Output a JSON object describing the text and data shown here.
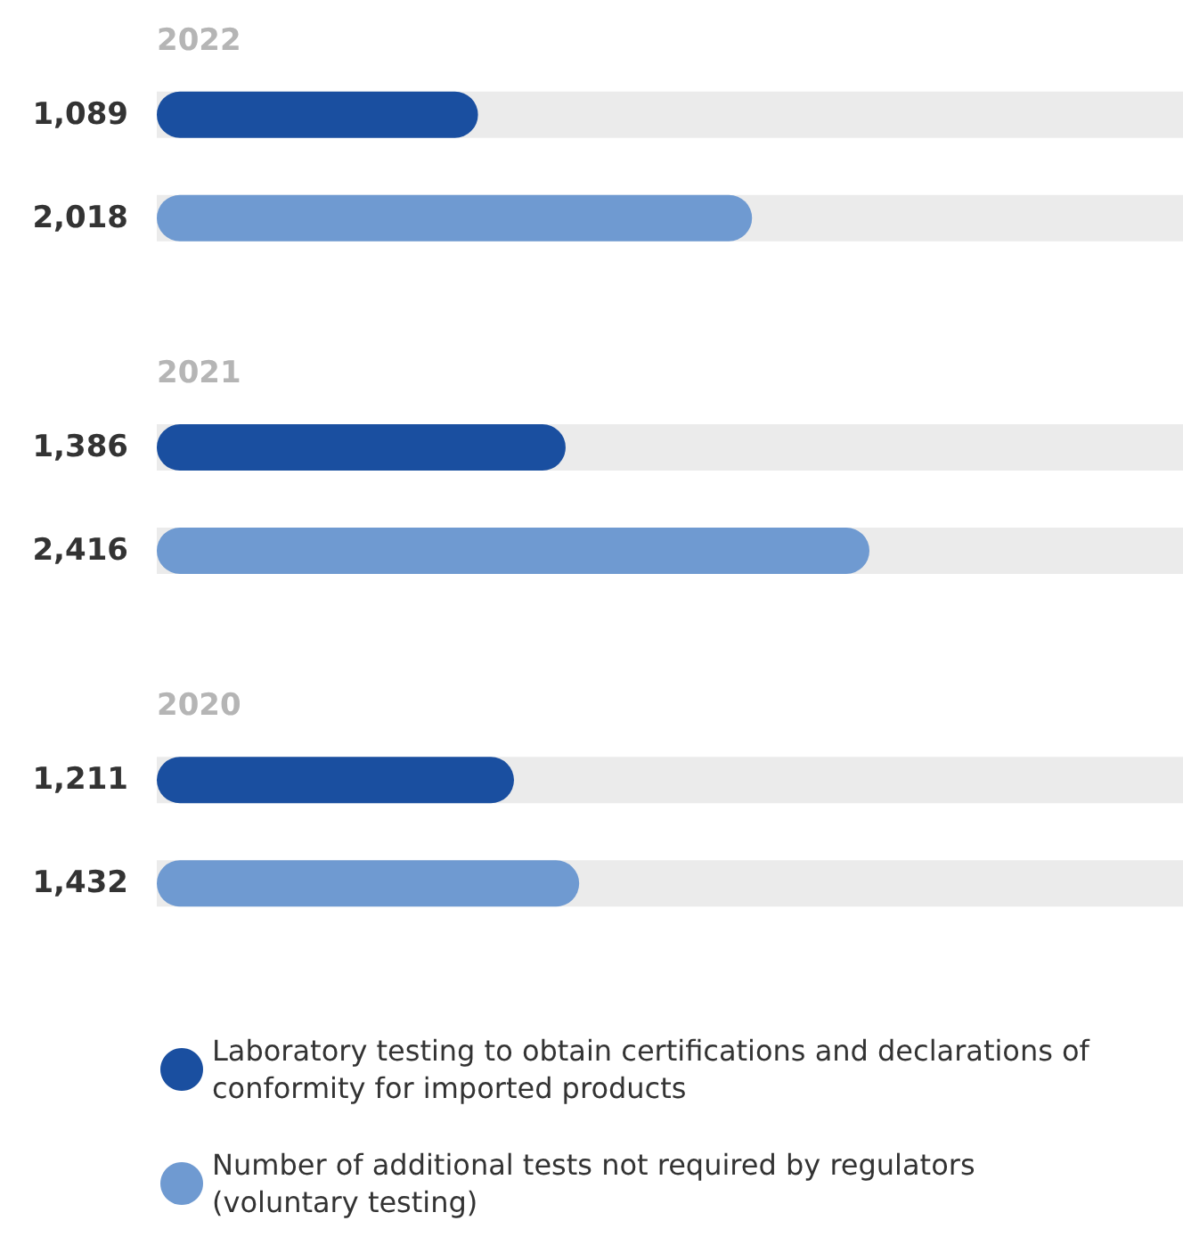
{
  "chart_data": {
    "type": "bar",
    "orientation": "horizontal",
    "categories": [
      "2022",
      "2021",
      "2020"
    ],
    "series": [
      {
        "name": "Laboratory testing to obtain certifications and declarations of conformity for imported products",
        "color": "#1a4fa0",
        "values": [
          1089,
          1386,
          1211
        ],
        "value_labels": [
          "1,089",
          "1,386",
          "1,211"
        ]
      },
      {
        "name": "Number of additional tests not required by regulators (voluntary testing)",
        "color": "#6f9ad1",
        "values": [
          2018,
          2416,
          1432
        ],
        "value_labels": [
          "2,018",
          "2,416",
          "1,432"
        ]
      }
    ],
    "legend": "bottom",
    "grid": false
  }
}
